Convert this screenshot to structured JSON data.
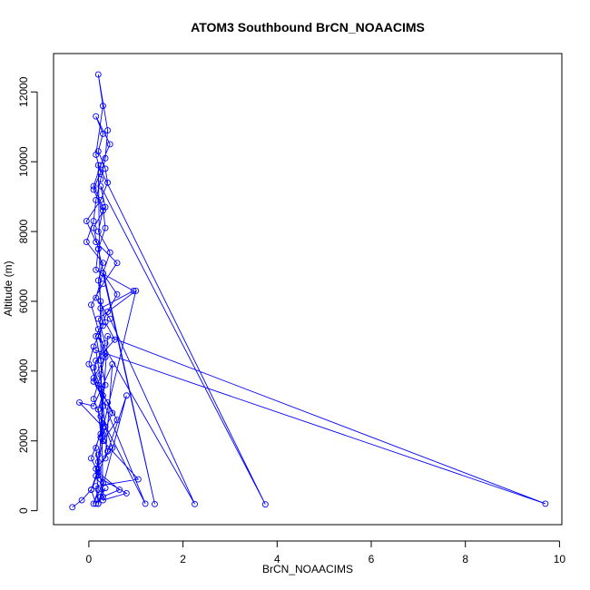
{
  "chart_data": {
    "type": "line",
    "title": "ATOM3 Southbound BrCN_NOAACIMS",
    "xlabel": "BrCN_NOAACIMS",
    "ylabel": "Altitude (m)",
    "xlim": [
      -0.75,
      10.05
    ],
    "ylim": [
      -400,
      13100
    ],
    "x_ticks": [
      0,
      2,
      4,
      6,
      8,
      10
    ],
    "x_tick_labels": [
      "0",
      "2",
      "4",
      "6",
      "8",
      "10"
    ],
    "y_ticks": [
      0,
      2000,
      4000,
      6000,
      8000,
      10000,
      12000
    ],
    "y_tick_labels": [
      "0",
      "2000",
      "4000",
      "6000",
      "8000",
      "10000",
      "12000"
    ],
    "grid": false,
    "legend": "none",
    "markers": "open-circle",
    "series_color": "#0000ff",
    "series": [
      {
        "x": [
          -0.35,
          -0.15,
          0.05,
          0.2,
          0.15,
          0.3,
          0.1,
          0.25,
          0.35,
          0.2,
          0.05,
          0.3,
          0.6,
          0.15,
          -0.05,
          0.25,
          0.4,
          0.35,
          0.2,
          0.3,
          0.15,
          0.45,
          0.25,
          0.1,
          0.3,
          0.35,
          0.2,
          0.15,
          0.95,
          0.25,
          0.3,
          0.1,
          0.0,
          0.2,
          0.3,
          0.35,
          0.5,
          0.15,
          0.2,
          0.1,
          0.3,
          0.05,
          0.25,
          0.2,
          0.35,
          0.25,
          0.15,
          0.4,
          0.6,
          0.3,
          0.45,
          0.2,
          0.3,
          0.1,
          0.25,
          0.15,
          0.3,
          0.2,
          0.4,
          0.35,
          0.25,
          0.15,
          0.1,
          -0.05,
          0.3,
          0.2,
          0.25,
          0.35,
          0.55,
          0.15,
          0.1,
          0.4,
          0.6,
          0.3,
          0.2,
          0.25,
          0.3,
          0.65,
          0.2,
          0.4,
          9.7,
          0.15,
          0.3,
          0.25,
          1.0,
          0.2,
          0.35,
          0.1,
          0.25,
          0.5,
          0.3,
          0.2,
          0.15,
          0.8,
          0.3,
          0.2,
          3.75,
          0.25,
          0.35,
          0.1,
          0.2,
          1.4,
          0.3,
          0.15,
          0.45,
          2.25,
          0.2,
          0.35,
          0.1,
          1.2,
          0.25,
          0.3,
          1.05,
          0.15,
          0.2,
          0.8,
          0.35,
          0.5,
          0.1,
          -0.2,
          0.3,
          0.4,
          0.2,
          0.05,
          0.15,
          0.25,
          0.35,
          0.2
        ],
        "y": [
          100,
          300,
          600,
          1200,
          1800,
          2500,
          3200,
          3900,
          4500,
          5200,
          5900,
          6500,
          7100,
          7700,
          8300,
          8900,
          9400,
          9800,
          10300,
          10800,
          11300,
          10500,
          9900,
          9300,
          8700,
          8100,
          7500,
          6900,
          6300,
          5800,
          5300,
          4700,
          4200,
          3600,
          3000,
          2400,
          1800,
          1200,
          600,
          200,
          800,
          1500,
          2200,
          2900,
          3600,
          4300,
          5000,
          5700,
          6200,
          6800,
          7400,
          8000,
          8600,
          9200,
          9700,
          10200,
          11600,
          12500,
          10900,
          10100,
          9500,
          8900,
          8300,
          7700,
          7100,
          6600,
          6000,
          5400,
          4900,
          4300,
          3700,
          3100,
          2600,
          2000,
          1400,
          900,
          400,
          600,
          1100,
          5000,
          200,
          4600,
          3300,
          2100,
          6300,
          5500,
          4800,
          4100,
          3500,
          2800,
          2200,
          1600,
          1000,
          500,
          300,
          9900,
          180,
          9300,
          8700,
          8100,
          7500,
          190,
          6800,
          6100,
          5500,
          190,
          5000,
          4400,
          3800,
          200,
          2700,
          2000,
          900,
          700,
          200,
          3300,
          1500,
          4200,
          3000,
          3100,
          2400,
          1700,
          1100,
          600,
          200,
          400,
          650,
          200
        ]
      }
    ]
  }
}
